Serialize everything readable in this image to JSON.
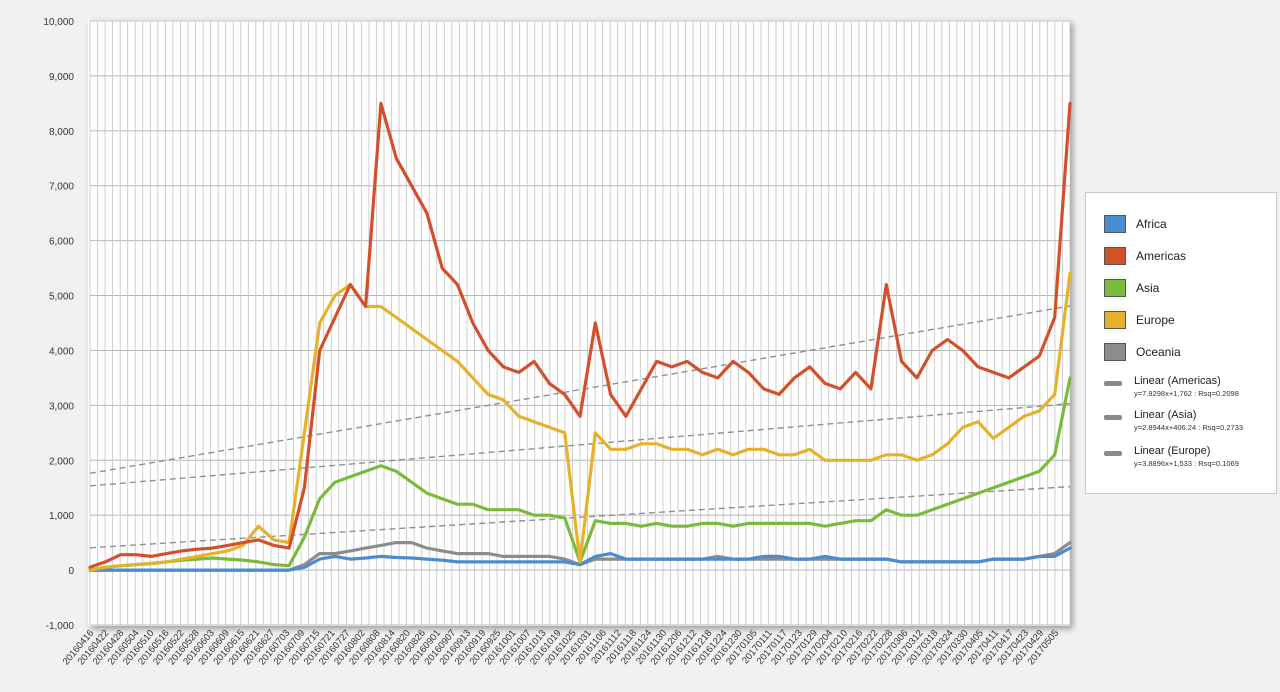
{
  "chart_data": {
    "type": "line",
    "title": "",
    "xlabel": "",
    "ylabel": "",
    "ylim": [
      -1000,
      10000
    ],
    "yticks": [
      -1000,
      0,
      1000,
      2000,
      3000,
      4000,
      5000,
      6000,
      7000,
      8000,
      9000,
      10000
    ],
    "ytick_labels": [
      "-1,000",
      "0",
      "1,000",
      "2,000",
      "3,000",
      "4,000",
      "5,000",
      "6,000",
      "7,000",
      "8,000",
      "9,000",
      "10,000"
    ],
    "grid": true,
    "legend_position": "right",
    "x_labels": [
      "20160416",
      "20160422",
      "20160428",
      "20160504",
      "20160510",
      "20160516",
      "20160522",
      "20160528",
      "20160603",
      "20160609",
      "20160615",
      "20160621",
      "20160627",
      "20160703",
      "20160709",
      "20160715",
      "20160721",
      "20160727",
      "20160802",
      "20160808",
      "20160814",
      "20160820",
      "20160826",
      "20160901",
      "20160907",
      "20160913",
      "20160919",
      "20160925",
      "20161001",
      "20161007",
      "20161013",
      "20161019",
      "20161025",
      "20161031",
      "20161106",
      "20161112",
      "20161118",
      "20161124",
      "20161130",
      "20161206",
      "20161212",
      "20161218",
      "20161224",
      "20161230",
      "20170105",
      "20170111",
      "20170117",
      "20170123",
      "20170129",
      "20170204",
      "20170210",
      "20170216",
      "20170222",
      "20170228",
      "20170306",
      "20170312",
      "20170318",
      "20170324",
      "20170330",
      "20170405",
      "20170411",
      "20170417",
      "20170423",
      "20170429",
      "20170505"
    ],
    "series": [
      {
        "name": "Africa",
        "color": "#4a8cd0",
        "values": [
          0,
          0,
          0,
          0,
          0,
          0,
          0,
          0,
          0,
          0,
          0,
          0,
          0,
          0,
          50,
          200,
          250,
          200,
          220,
          250,
          230,
          220,
          200,
          180,
          150,
          150,
          150,
          150,
          150,
          150,
          150,
          150,
          100,
          250,
          300,
          200,
          200,
          200,
          200,
          200,
          200,
          200,
          200,
          200,
          250,
          250,
          200,
          200,
          250,
          200,
          200,
          200,
          200,
          150,
          150,
          150,
          150,
          150,
          150,
          200,
          200,
          200,
          250,
          250,
          400
        ]
      },
      {
        "name": "Americas",
        "color": "#d2502c",
        "values": [
          50,
          150,
          280,
          280,
          250,
          300,
          350,
          380,
          400,
          450,
          500,
          550,
          450,
          400,
          1500,
          4000,
          4600,
          5200,
          4800,
          8500,
          7500,
          7000,
          6500,
          5500,
          5200,
          4500,
          4000,
          3700,
          3600,
          3800,
          3400,
          3200,
          2800,
          4500,
          3200,
          2800,
          3300,
          3800,
          3700,
          3800,
          3600,
          3500,
          3800,
          3600,
          3300,
          3200,
          3500,
          3700,
          3400,
          3300,
          3600,
          3300,
          5200,
          3800,
          3500,
          4000,
          4200,
          4000,
          3700,
          3600,
          3500,
          3700,
          3900,
          4600,
          8500
        ]
      },
      {
        "name": "Asia",
        "color": "#7cba3b",
        "values": [
          0,
          50,
          80,
          100,
          120,
          150,
          180,
          200,
          220,
          200,
          180,
          150,
          100,
          80,
          600,
          1300,
          1600,
          1700,
          1800,
          1900,
          1800,
          1600,
          1400,
          1300,
          1200,
          1200,
          1100,
          1100,
          1100,
          1000,
          1000,
          950,
          150,
          900,
          850,
          850,
          800,
          850,
          800,
          800,
          850,
          850,
          800,
          850,
          850,
          850,
          850,
          850,
          800,
          850,
          900,
          900,
          1100,
          1000,
          1000,
          1100,
          1200,
          1300,
          1400,
          1500,
          1600,
          1700,
          1800,
          2100,
          3500
        ]
      },
      {
        "name": "Europe",
        "color": "#e6b22c",
        "values": [
          0,
          50,
          80,
          100,
          120,
          150,
          200,
          250,
          300,
          350,
          450,
          800,
          550,
          500,
          2500,
          4500,
          5000,
          5200,
          4800,
          4800,
          4600,
          4400,
          4200,
          4000,
          3800,
          3500,
          3200,
          3100,
          2800,
          2700,
          2600,
          2500,
          150,
          2500,
          2200,
          2200,
          2300,
          2300,
          2200,
          2200,
          2100,
          2200,
          2100,
          2200,
          2200,
          2100,
          2100,
          2200,
          2000,
          2000,
          2000,
          2000,
          2100,
          2100,
          2000,
          2100,
          2300,
          2600,
          2700,
          2400,
          2600,
          2800,
          2900,
          3200,
          5400
        ]
      },
      {
        "name": "Oceania",
        "color": "#8c8c8c",
        "values": [
          0,
          0,
          0,
          0,
          0,
          0,
          0,
          0,
          0,
          0,
          0,
          0,
          0,
          0,
          100,
          300,
          300,
          350,
          400,
          450,
          500,
          500,
          400,
          350,
          300,
          300,
          300,
          250,
          250,
          250,
          250,
          200,
          100,
          200,
          200,
          200,
          200,
          200,
          200,
          200,
          200,
          250,
          200,
          200,
          200,
          200,
          200,
          200,
          200,
          200,
          200,
          200,
          200,
          150,
          150,
          150,
          150,
          150,
          150,
          200,
          200,
          200,
          250,
          300,
          500
        ]
      }
    ],
    "trendlines": [
      {
        "name": "Linear (Americas)",
        "equation": "y=7.9298x+1,762 : Rsq=0.2098",
        "start": 1762,
        "end": 4810
      },
      {
        "name": "Linear (Asia)",
        "equation": "y=2.8944x+406.24 : Rsq=0.2733",
        "start": 406,
        "end": 1520
      },
      {
        "name": "Linear (Europe)",
        "equation": "y=3.8896x+1,533 : Rsq=0.1069",
        "start": 1533,
        "end": 3030
      }
    ]
  },
  "legend": {
    "items": [
      {
        "label": "Africa",
        "color": "#4a8cd0"
      },
      {
        "label": "Americas",
        "color": "#d2502c"
      },
      {
        "label": "Asia",
        "color": "#7cba3b"
      },
      {
        "label": "Europe",
        "color": "#e6b22c"
      },
      {
        "label": "Oceania",
        "color": "#8c8c8c"
      }
    ],
    "trend_items": [
      {
        "label": "Linear (Americas)",
        "equation": "y=7.9298x+1,762 : Rsq=0.2098"
      },
      {
        "label": "Linear (Asia)",
        "equation": "y=2.8944x+406.24 : Rsq=0.2733"
      },
      {
        "label": "Linear (Europe)",
        "equation": "y=3.8896x+1,533 : Rsq=0.1069"
      }
    ]
  }
}
